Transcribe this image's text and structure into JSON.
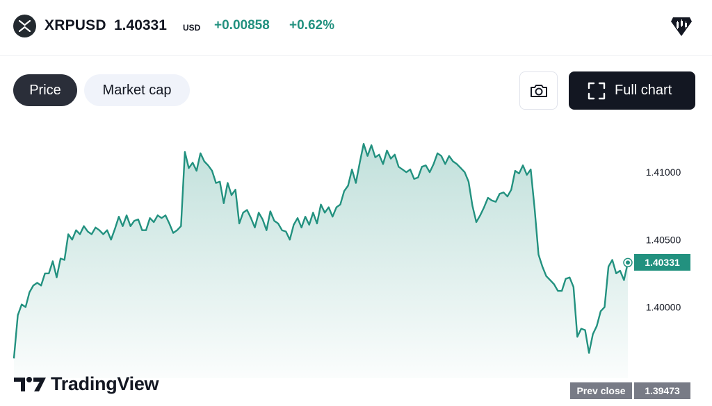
{
  "header": {
    "symbol": "XRPUSD",
    "price": "1.40331",
    "currency": "USD",
    "change": "+0.00858",
    "change_percent": "+0.62%",
    "symbol_icon": "xrp-logo-icon",
    "brand_icon": "tradingview-brand-icon",
    "positive_color": "#22917f"
  },
  "tabs": [
    {
      "label": "Price",
      "active": true
    },
    {
      "label": "Market cap",
      "active": false
    }
  ],
  "toolbar": {
    "camera_icon": "camera-icon",
    "full_chart_label": "Full chart",
    "full_chart_icon": "fullscreen-icon"
  },
  "chart_data": {
    "type": "area",
    "title": "",
    "xlabel": "",
    "ylabel": "",
    "ylim": [
      1.39473,
      1.4135
    ],
    "y_ticks": [
      "1.41000",
      "1.40500",
      "1.40000"
    ],
    "line_color": "#22917f",
    "grid": false,
    "last_value": "1.40331",
    "prev_close_label": "Prev close",
    "prev_close": "1.39473",
    "values": [
      1.3962,
      1.3994,
      1.4002,
      1.4,
      1.4011,
      1.4016,
      1.4018,
      1.4016,
      1.4025,
      1.4025,
      1.4034,
      1.4022,
      1.4036,
      1.4035,
      1.4054,
      1.405,
      1.4057,
      1.4054,
      1.406,
      1.4056,
      1.4054,
      1.4059,
      1.4057,
      1.4054,
      1.4057,
      1.405,
      1.4058,
      1.4067,
      1.406,
      1.4068,
      1.406,
      1.4064,
      1.4065,
      1.4057,
      1.4057,
      1.4066,
      1.4063,
      1.4068,
      1.4066,
      1.4068,
      1.4062,
      1.4055,
      1.4057,
      1.406,
      1.4115,
      1.4103,
      1.4107,
      1.4101,
      1.4114,
      1.4108,
      1.4105,
      1.4101,
      1.4092,
      1.4093,
      1.4077,
      1.4092,
      1.4083,
      1.4087,
      1.4062,
      1.407,
      1.4072,
      1.4066,
      1.4059,
      1.407,
      1.4065,
      1.4057,
      1.4071,
      1.4064,
      1.4062,
      1.4057,
      1.4056,
      1.405,
      1.4061,
      1.4066,
      1.4059,
      1.4067,
      1.4061,
      1.407,
      1.4062,
      1.4076,
      1.407,
      1.4074,
      1.4067,
      1.4074,
      1.4076,
      1.4086,
      1.409,
      1.4102,
      1.4092,
      1.4107,
      1.4121,
      1.4112,
      1.412,
      1.4111,
      1.4113,
      1.4106,
      1.4116,
      1.411,
      1.4113,
      1.4104,
      1.4102,
      1.41,
      1.4102,
      1.4095,
      1.4096,
      1.4104,
      1.4105,
      1.41,
      1.4106,
      1.4114,
      1.4112,
      1.4106,
      1.4112,
      1.4108,
      1.4106,
      1.4103,
      1.41,
      1.4093,
      1.4075,
      1.4063,
      1.4068,
      1.4074,
      1.4081,
      1.4079,
      1.4078,
      1.4084,
      1.4085,
      1.4082,
      1.4087,
      1.4101,
      1.4099,
      1.4105,
      1.4098,
      1.4102,
      1.4073,
      1.4039,
      1.403,
      1.4023,
      1.402,
      1.4017,
      1.4012,
      1.4012,
      1.4021,
      1.4022,
      1.4015,
      1.3978,
      1.3984,
      1.3983,
      1.3966,
      1.398,
      1.3986,
      1.3997,
      1.4,
      1.403,
      1.4035,
      1.4025,
      1.4027,
      1.402,
      1.4033
    ]
  },
  "branding": {
    "logo_text": "TradingView",
    "logo_icon": "tradingview-logo-icon"
  }
}
